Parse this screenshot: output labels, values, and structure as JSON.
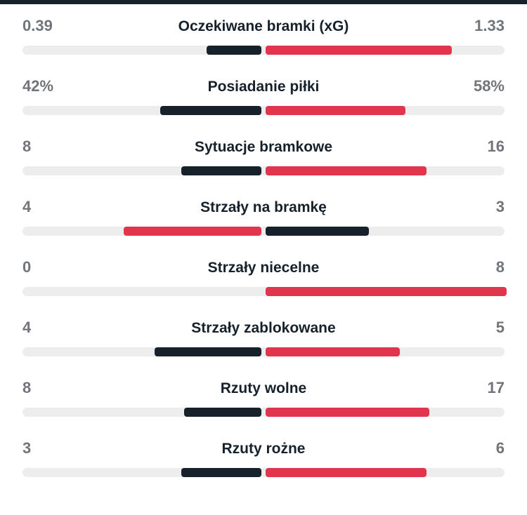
{
  "colors": {
    "leading": "#e1344d",
    "trailing": "#17212b",
    "track": "#ededed",
    "title": "#17212b",
    "value": "#717579",
    "top_strip": "#17212b"
  },
  "chart_data": {
    "type": "bar",
    "title": "Match statistics comparison (home vs away)",
    "legend_note": "Leading value bar is red, trailing value bar is dark navy; bars grow outward from center",
    "rows": [
      {
        "label": "Oczekiwane bramki (xG)",
        "home": "0.39",
        "away": "1.33",
        "home_num": 0.39,
        "away_num": 1.33
      },
      {
        "label": "Posiadanie piłki",
        "home": "42%",
        "away": "58%",
        "home_num": 42,
        "away_num": 58
      },
      {
        "label": "Sytuacje bramkowe",
        "home": "8",
        "away": "16",
        "home_num": 8,
        "away_num": 16
      },
      {
        "label": "Strzały na bramkę",
        "home": "4",
        "away": "3",
        "home_num": 4,
        "away_num": 3
      },
      {
        "label": "Strzały niecelne",
        "home": "0",
        "away": "8",
        "home_num": 0,
        "away_num": 8
      },
      {
        "label": "Strzały zablokowane",
        "home": "4",
        "away": "5",
        "home_num": 4,
        "away_num": 5
      },
      {
        "label": "Rzuty wolne",
        "home": "8",
        "away": "17",
        "home_num": 8,
        "away_num": 17
      },
      {
        "label": "Rzuty rożne",
        "home": "3",
        "away": "6",
        "home_num": 3,
        "away_num": 6
      }
    ]
  }
}
